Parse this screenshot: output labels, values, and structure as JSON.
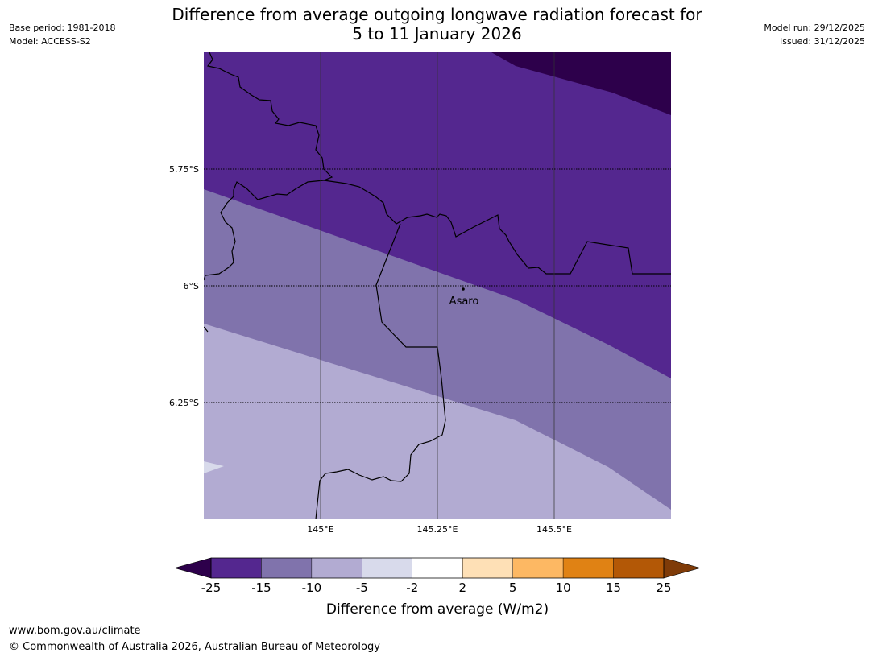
{
  "header": {
    "title_line1": "Difference from average outgoing longwave radiation forecast for",
    "title_line2": "5 to 11 January 2026",
    "base_period": "Base period: 1981-2018",
    "model": "Model: ACCESS-S2",
    "model_run": "Model run: 29/12/2025",
    "issued": "Issued: 31/12/2025"
  },
  "map": {
    "lat_labels": [
      "5.75°S",
      "6°S",
      "6.25°S"
    ],
    "lon_labels": [
      "145°E",
      "145.25°E",
      "145.5°E"
    ],
    "place": {
      "name": "Asaro"
    }
  },
  "colorbar": {
    "title": "Difference from average (W/m2)",
    "ticks": [
      "-25",
      "-15",
      "-10",
      "-5",
      "-2",
      "2",
      "5",
      "10",
      "15",
      "25"
    ],
    "colors": [
      "#54278f",
      "#8073ac",
      "#b2abd2",
      "#d8daeb",
      "#ffffff",
      "#fee0b6",
      "#fdb863",
      "#e08214",
      "#b35806"
    ],
    "under_color": "#2d004b",
    "over_color": "#7f3b08"
  },
  "colors": {
    "band_lt_25": "#2d004b",
    "band_25_15": "#54278f",
    "band_15_10": "#8073ac",
    "band_10_5": "#b2abd2",
    "band_5_2": "#d8daeb"
  },
  "footer": {
    "url": "www.bom.gov.au/climate",
    "copyright": "© Commonwealth of Australia 2026, Australian Bureau of Meteorology"
  }
}
